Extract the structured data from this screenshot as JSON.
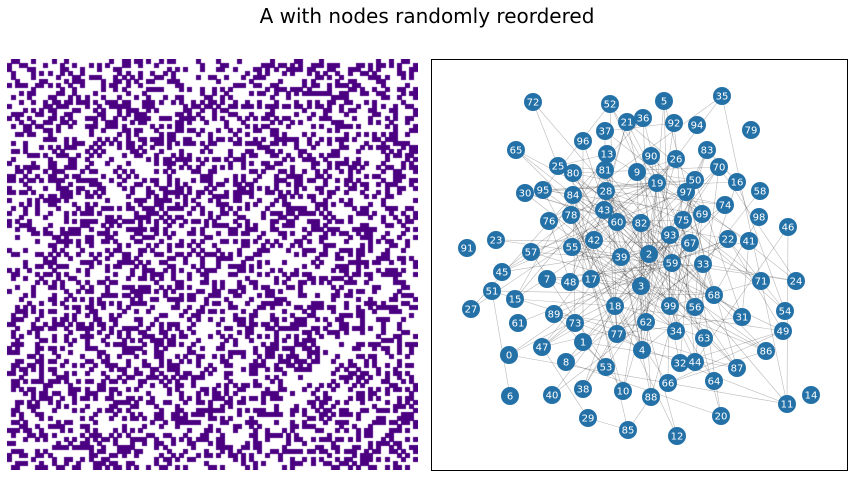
{
  "figure": {
    "title": "A with nodes randomly reordered"
  },
  "colors": {
    "matrix_on": "#4b0082",
    "matrix_off": "#ffffff",
    "node_fill": "#2471a8",
    "edge": "#000000"
  },
  "matrix": {
    "size": 100,
    "fill_fraction": 0.35
  },
  "graph": {
    "node_count": 100,
    "node_labels": [
      "0",
      "1",
      "2",
      "3",
      "4",
      "5",
      "6",
      "7",
      "8",
      "9",
      "10",
      "11",
      "12",
      "13",
      "14",
      "15",
      "16",
      "17",
      "18",
      "19",
      "20",
      "21",
      "22",
      "23",
      "24",
      "25",
      "26",
      "27",
      "28",
      "29",
      "30",
      "31",
      "32",
      "33",
      "34",
      "35",
      "36",
      "37",
      "38",
      "39",
      "40",
      "41",
      "42",
      "43",
      "44",
      "45",
      "46",
      "47",
      "48",
      "49",
      "50",
      "51",
      "52",
      "53",
      "54",
      "55",
      "56",
      "57",
      "58",
      "59",
      "60",
      "61",
      "62",
      "63",
      "64",
      "65",
      "66",
      "67",
      "68",
      "69",
      "70",
      "71",
      "72",
      "73",
      "74",
      "75",
      "76",
      "77",
      "78",
      "79",
      "80",
      "81",
      "82",
      "83",
      "84",
      "85",
      "86",
      "87",
      "88",
      "89",
      "90",
      "91",
      "92",
      "93",
      "94",
      "95",
      "96",
      "97",
      "98",
      "99"
    ]
  }
}
